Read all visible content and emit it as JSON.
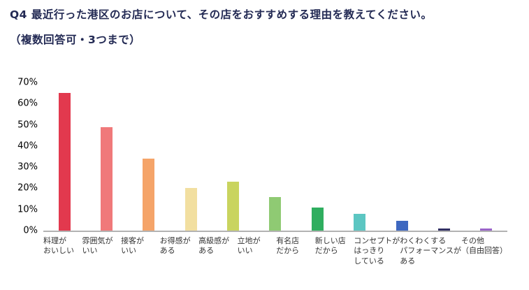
{
  "title": {
    "line1": "Q4 最近行った港区のお店について、その店をおすすめする理由を教えてください。",
    "line2": "（複数回答可・3つまで）",
    "color": "#232a54"
  },
  "chart_data": {
    "type": "bar",
    "title": "Q4 最近行った港区のお店について、その店をおすすめする理由を教えてください。（複数回答可・3つまで）",
    "categories": [
      "料理が\nおいしい",
      "雰囲気が\nいい",
      "接客が\nいい",
      "お得感が\nある",
      "高級感が\nある",
      "立地が\nいい",
      "有名店\nだから",
      "新しい店\nだから",
      "コンセプトが\nはっきり\nしている",
      "わくわくする\nパフォーマンスが\nある",
      "その他\n（自由回答）"
    ],
    "values": [
      65,
      49,
      34,
      20,
      23,
      16,
      11,
      8,
      4.5,
      1,
      1
    ],
    "colors": [
      "#e2394e",
      "#f0797a",
      "#f5a469",
      "#f2dfa0",
      "#c9d45f",
      "#8fca73",
      "#2fae5f",
      "#5cc6c2",
      "#3e68c0",
      "#312f63",
      "#9a64c8"
    ],
    "xlabel": "",
    "ylabel": "",
    "ylim": [
      0,
      70
    ],
    "yticks": [
      0,
      10,
      20,
      30,
      40,
      50,
      60,
      70
    ],
    "ytick_suffix": "%",
    "grid": false,
    "legend": false
  }
}
